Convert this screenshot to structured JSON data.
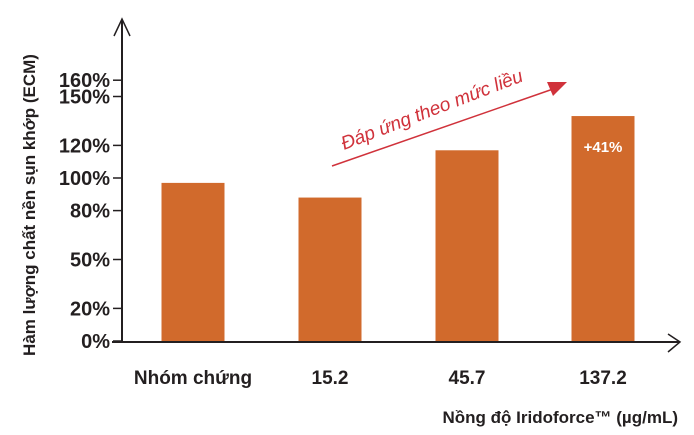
{
  "chart_data": {
    "type": "bar",
    "categories": [
      "Nhóm chứng",
      "15.2",
      "45.7",
      "137.2"
    ],
    "values": [
      97,
      88,
      117,
      138
    ],
    "xlabel": "Nồng độ Iridoforce™ (µg/mL)",
    "ylabel": "Hàm lượng chất nền sụn khớp (ECM)",
    "yticks": [
      0,
      20,
      50,
      80,
      100,
      120,
      150,
      160
    ],
    "ytick_labels": [
      "0%",
      "20%",
      "50%",
      "80%",
      "100%",
      "120%",
      "150%",
      "160%"
    ],
    "ylim": [
      0,
      160
    ],
    "grid": false,
    "bar_color": "#d16a2c",
    "data_labels": [
      {
        "category": "137.2",
        "text": "+41%"
      }
    ],
    "annotation": {
      "text": "Đáp ứng theo mức liều",
      "color": "#d0323b"
    }
  }
}
